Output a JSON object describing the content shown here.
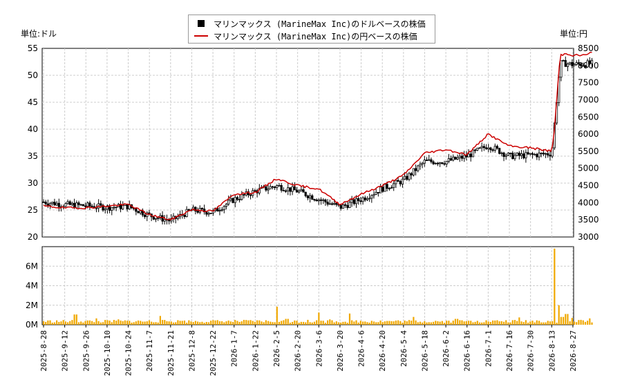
{
  "units": {
    "left": "単位:ドル",
    "right": "単位:円"
  },
  "legend": [
    {
      "label": "マリンマックス (MarineMax Inc)のドルベースの株価",
      "symbol": "box",
      "color": "#000000"
    },
    {
      "label": "マリンマックス (MarineMax Inc)の円ベースの株価",
      "symbol": "line",
      "color": "#cc0000"
    }
  ],
  "colors": {
    "candle": "#000000",
    "yen_line": "#cc0000",
    "volume": "#f0a800",
    "grid": "#cccccc"
  },
  "chart_data": [
    {
      "type": "line",
      "panel": "price",
      "y_left": {
        "min": 20,
        "max": 55,
        "ticks": [
          "20",
          "25",
          "30",
          "35",
          "40",
          "45",
          "50",
          "55"
        ]
      },
      "y_right": {
        "min": 3000,
        "max": 8500,
        "ticks": [
          "3000",
          "3500",
          "4000",
          "4500",
          "5000",
          "5500",
          "6000",
          "6500",
          "7000",
          "7500",
          "8000",
          "8500"
        ]
      },
      "x_dates": [
        "2025-8-28",
        "2025-9-12",
        "2025-9-26",
        "2025-10-10",
        "2025-10-24",
        "2025-11-7",
        "2025-11-21",
        "2025-12-8",
        "2025-12-22",
        "2026-1-7",
        "2026-1-22",
        "2026-2-5",
        "2026-2-20",
        "2026-3-6",
        "2026-3-20",
        "2026-4-6",
        "2026-4-20",
        "2026-5-4",
        "2026-5-18",
        "2026-6-2",
        "2026-6-16",
        "2026-7-1",
        "2026-7-16",
        "2026-7-30",
        "2026-8-13",
        "2026-8-27"
      ],
      "series": [
        {
          "name": "マリンマックス (MarineMax Inc)のドルベースの株価",
          "kind": "price_usd",
          "x": [
            0,
            1,
            2,
            3,
            4,
            5,
            6,
            7,
            8,
            9,
            10,
            11,
            12,
            13,
            14,
            15,
            16,
            17,
            18,
            19,
            20,
            21,
            22,
            23,
            24,
            24.4,
            24.7,
            25,
            25.5,
            25.9
          ],
          "values": [
            26.5,
            26.0,
            25.8,
            25.5,
            25.7,
            24.0,
            23.0,
            25.0,
            24.6,
            27.0,
            28.5,
            29.5,
            28.5,
            27.0,
            25.5,
            27.0,
            29.0,
            30.5,
            34.0,
            34.0,
            35.0,
            37.0,
            35.0,
            35.2,
            35.5,
            52.2,
            52.2,
            52.0,
            52.1,
            52.2
          ]
        },
        {
          "name": "マリンマックス (MarineMax Inc)の円ベースの株価",
          "kind": "price_jpy",
          "x": [
            0,
            1,
            2,
            3,
            4,
            5,
            6,
            7,
            8,
            9,
            10,
            11,
            12,
            13,
            14,
            15,
            16,
            17,
            18,
            19,
            20,
            21,
            22,
            23,
            24,
            24.1,
            24.4,
            24.7,
            25,
            25.5,
            25.9
          ],
          "values": [
            3900,
            3850,
            3850,
            3900,
            3950,
            3650,
            3500,
            3800,
            3750,
            4250,
            4300,
            4700,
            4500,
            4400,
            3950,
            4250,
            4500,
            4800,
            5450,
            5550,
            5400,
            6000,
            5650,
            5600,
            5500,
            5950,
            8300,
            8350,
            8300,
            8300,
            8380
          ]
        }
      ]
    },
    {
      "type": "bar",
      "panel": "volume",
      "y": {
        "min": 0,
        "max": 8000000,
        "ticks": [
          "0M",
          "2M",
          "4M",
          "6M"
        ]
      },
      "series": [
        {
          "name": "volume",
          "x": [
            0.3,
            1.5,
            2.5,
            3.5,
            4.5,
            5.5,
            6.5,
            7.5,
            8.5,
            9.5,
            10.5,
            11.0,
            11.5,
            12.5,
            13.0,
            13.5,
            14.5,
            15.5,
            16.5,
            17.5,
            18.5,
            19.5,
            20.5,
            21.5,
            22.5,
            23.3,
            23.8,
            24.1,
            24.3,
            24.5,
            24.7,
            25.0,
            25.4,
            25.8
          ],
          "values": [
            200000,
            1050000,
            650000,
            550000,
            350000,
            900000,
            400000,
            300000,
            250000,
            300000,
            450000,
            1850000,
            600000,
            500000,
            1250000,
            550000,
            1150000,
            400000,
            350000,
            800000,
            400000,
            600000,
            400000,
            350000,
            750000,
            450000,
            400000,
            7800000,
            2000000,
            800000,
            1100000,
            700000,
            500000,
            650000
          ]
        }
      ]
    }
  ]
}
